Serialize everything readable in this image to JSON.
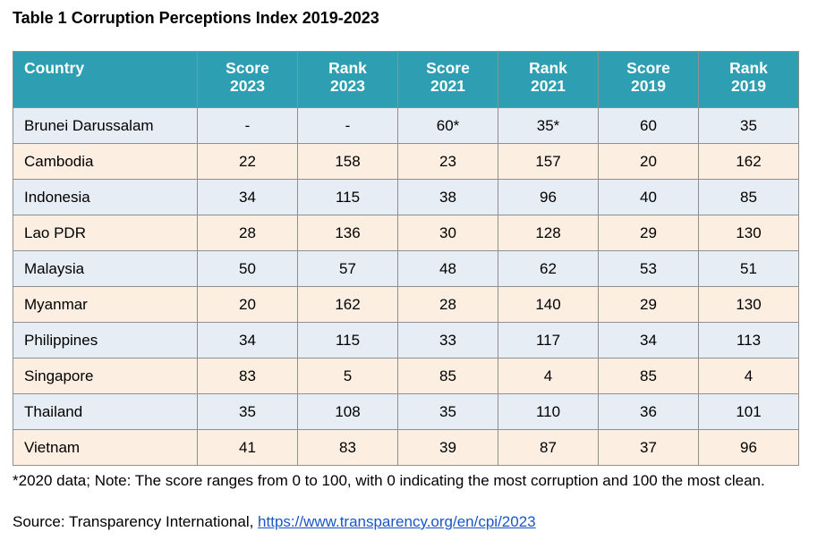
{
  "title": "Table 1 Corruption Perceptions Index 2019-2023",
  "colors": {
    "header_bg": "#2e9fb2",
    "header_text": "#ffffff",
    "row_blue": "#e6edf4",
    "row_peach": "#fdeee2",
    "link": "#1a56c9"
  },
  "table": {
    "headers": [
      {
        "line1": "Country",
        "line2": ""
      },
      {
        "line1": "Score",
        "line2": "2023"
      },
      {
        "line1": "Rank",
        "line2": "2023"
      },
      {
        "line1": "Score",
        "line2": "2021"
      },
      {
        "line1": "Rank",
        "line2": "2021"
      },
      {
        "line1": "Score",
        "line2": "2019"
      },
      {
        "line1": "Rank",
        "line2": "2019"
      }
    ],
    "rows": [
      {
        "country": "Brunei Darussalam",
        "s2023": "-",
        "r2023": "-",
        "s2021": "60*",
        "r2021": "35*",
        "s2019": "60",
        "r2019": "35"
      },
      {
        "country": "Cambodia",
        "s2023": "22",
        "r2023": "158",
        "s2021": "23",
        "r2021": "157",
        "s2019": "20",
        "r2019": "162"
      },
      {
        "country": "Indonesia",
        "s2023": "34",
        "r2023": "115",
        "s2021": "38",
        "r2021": "96",
        "s2019": "40",
        "r2019": "85"
      },
      {
        "country": "Lao PDR",
        "s2023": "28",
        "r2023": "136",
        "s2021": "30",
        "r2021": "128",
        "s2019": "29",
        "r2019": "130"
      },
      {
        "country": "Malaysia",
        "s2023": "50",
        "r2023": "57",
        "s2021": "48",
        "r2021": "62",
        "s2019": "53",
        "r2019": "51"
      },
      {
        "country": "Myanmar",
        "s2023": "20",
        "r2023": "162",
        "s2021": "28",
        "r2021": "140",
        "s2019": "29",
        "r2019": "130"
      },
      {
        "country": "Philippines",
        "s2023": "34",
        "r2023": "115",
        "s2021": "33",
        "r2021": "117",
        "s2019": "34",
        "r2019": "113"
      },
      {
        "country": "Singapore",
        "s2023": "83",
        "r2023": "5",
        "s2021": "85",
        "r2021": "4",
        "s2019": "85",
        "r2019": "4"
      },
      {
        "country": "Thailand",
        "s2023": "35",
        "r2023": "108",
        "s2021": "35",
        "r2021": "110",
        "s2019": "36",
        "r2019": "101"
      },
      {
        "country": "Vietnam",
        "s2023": "41",
        "r2023": "83",
        "s2021": "39",
        "r2021": "87",
        "s2019": "37",
        "r2019": "96"
      }
    ]
  },
  "note": "*2020 data; Note: The score ranges from 0 to 100, with 0 indicating the most corruption and 100 the most clean.",
  "source": {
    "label": "Source: Transparency International, ",
    "link_text": "https://www.transparency.org/en/cpi/2023"
  }
}
